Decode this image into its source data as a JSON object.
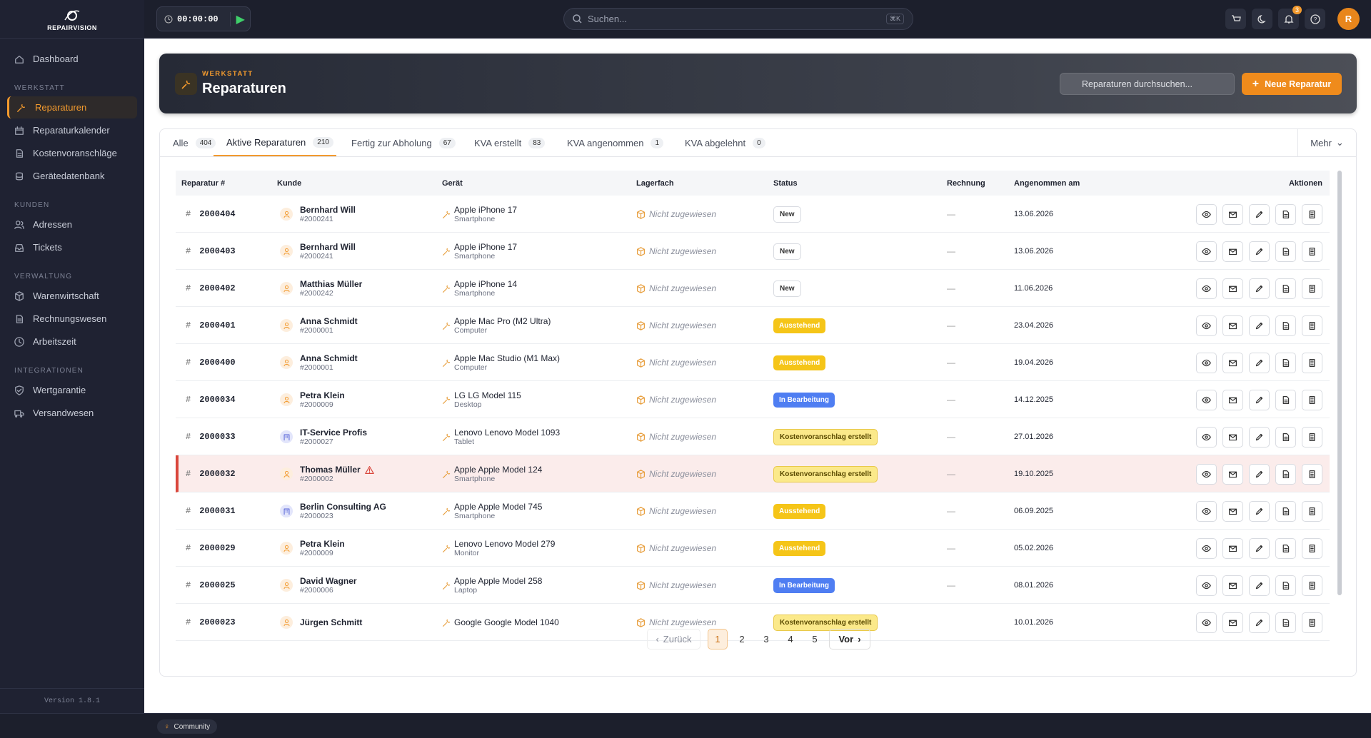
{
  "sidebar": {
    "brand": "REPAIRVISION",
    "top_items": [
      {
        "label": "Dashboard",
        "icon": "home"
      }
    ],
    "sections": [
      {
        "title": "WERKSTATT",
        "items": [
          {
            "label": "Reparaturen",
            "icon": "wrench",
            "active": true
          },
          {
            "label": "Reparaturkalender",
            "icon": "calendar"
          },
          {
            "label": "Kostenvoranschläge",
            "icon": "doc"
          },
          {
            "label": "Gerätedatenbank",
            "icon": "db"
          }
        ]
      },
      {
        "title": "KUNDEN",
        "items": [
          {
            "label": "Adressen",
            "icon": "users"
          },
          {
            "label": "Tickets",
            "icon": "inbox"
          }
        ]
      },
      {
        "title": "VERWALTUNG",
        "items": [
          {
            "label": "Warenwirtschaft",
            "icon": "box"
          },
          {
            "label": "Rechnungswesen",
            "icon": "doc"
          },
          {
            "label": "Arbeitszeit",
            "icon": "clock"
          }
        ]
      },
      {
        "title": "INTEGRATIONEN",
        "items": [
          {
            "label": "Wertgarantie",
            "icon": "shield"
          },
          {
            "label": "Versandwesen",
            "icon": "truck"
          }
        ]
      }
    ],
    "version": "Version 1.8.1"
  },
  "topbar": {
    "timer": "00:00:00",
    "search": "Suchen...",
    "shortcut": "⌘K",
    "notifications": 3,
    "avatar": "R"
  },
  "header": {
    "eyebrow": "WERKSTATT",
    "title": "Reparaturen",
    "search": "Reparaturen durchsuchen...",
    "button": "Neue Reparatur"
  },
  "tabs": {
    "items": [
      {
        "label": "Alle",
        "count": 404
      },
      {
        "label": "Aktive Reparaturen",
        "count": 210,
        "active": true
      },
      {
        "label": "Fertig zur Abholung",
        "count": 67
      },
      {
        "label": "KVA erstellt",
        "count": 83
      },
      {
        "label": "KVA angenommen",
        "count": 1
      },
      {
        "label": "KVA abgelehnt",
        "count": 0
      }
    ],
    "more": "Mehr"
  },
  "table": {
    "columns": [
      "Reparatur #",
      "Kunde",
      "Gerät",
      "Lagerfach",
      "Status",
      "Rechnung",
      "Angenommen am",
      "Aktionen"
    ],
    "rows": [
      {
        "id": "2000404",
        "customer": "Bernhard Will",
        "customer_no": "#2000241",
        "icon": "person",
        "device": "Apple iPhone 17",
        "device_type": "Smartphone",
        "storage": "Nicht zugewiesen",
        "status": "New",
        "invoice": "—",
        "date": "13.06.2026"
      },
      {
        "id": "2000403",
        "customer": "Bernhard Will",
        "customer_no": "#2000241",
        "icon": "person",
        "device": "Apple iPhone 17",
        "device_type": "Smartphone",
        "storage": "Nicht zugewiesen",
        "status": "New",
        "invoice": "—",
        "date": "13.06.2026"
      },
      {
        "id": "2000402",
        "customer": "Matthias Müller",
        "customer_no": "#2000242",
        "icon": "person",
        "device": "Apple iPhone 14",
        "device_type": "Smartphone",
        "storage": "Nicht zugewiesen",
        "status": "New",
        "invoice": "—",
        "date": "11.06.2026"
      },
      {
        "id": "2000401",
        "customer": "Anna Schmidt",
        "customer_no": "#2000001",
        "icon": "person",
        "device": "Apple Mac Pro (M2 Ultra)",
        "device_type": "Computer",
        "storage": "Nicht zugewiesen",
        "status": "Ausstehend",
        "invoice": "—",
        "date": "23.04.2026"
      },
      {
        "id": "2000400",
        "customer": "Anna Schmidt",
        "customer_no": "#2000001",
        "icon": "person",
        "device": "Apple Mac Studio (M1 Max)",
        "device_type": "Computer",
        "storage": "Nicht zugewiesen",
        "status": "Ausstehend",
        "invoice": "—",
        "date": "19.04.2026"
      },
      {
        "id": "2000034",
        "customer": "Petra Klein",
        "customer_no": "#2000009",
        "icon": "person",
        "device": "LG LG Model 115",
        "device_type": "Desktop",
        "storage": "Nicht zugewiesen",
        "status": "In Bearbeitung",
        "invoice": "—",
        "date": "14.12.2025"
      },
      {
        "id": "2000033",
        "customer": "IT-Service Profis",
        "customer_no": "#2000027",
        "icon": "company",
        "device": "Lenovo Lenovo Model 1093",
        "device_type": "Tablet",
        "storage": "Nicht zugewiesen",
        "status": "Kostenvoranschlag erstellt",
        "invoice": "—",
        "date": "27.01.2026"
      },
      {
        "id": "2000032",
        "customer": "Thomas Müller",
        "customer_no": "#2000002",
        "icon": "person",
        "warning": true,
        "device": "Apple Apple Model 124",
        "device_type": "Smartphone",
        "storage": "Nicht zugewiesen",
        "status": "Kostenvoranschlag erstellt",
        "invoice": "—",
        "date": "19.10.2025"
      },
      {
        "id": "2000031",
        "customer": "Berlin Consulting AG",
        "customer_no": "#2000023",
        "icon": "company",
        "device": "Apple Apple Model 745",
        "device_type": "Smartphone",
        "storage": "Nicht zugewiesen",
        "status": "Ausstehend",
        "invoice": "—",
        "date": "06.09.2025"
      },
      {
        "id": "2000029",
        "customer": "Petra Klein",
        "customer_no": "#2000009",
        "icon": "person",
        "device": "Lenovo Lenovo Model 279",
        "device_type": "Monitor",
        "storage": "Nicht zugewiesen",
        "status": "Ausstehend",
        "invoice": "—",
        "date": "05.02.2026"
      },
      {
        "id": "2000025",
        "customer": "David Wagner",
        "customer_no": "#2000006",
        "icon": "person",
        "device": "Apple Apple Model 258",
        "device_type": "Laptop",
        "storage": "Nicht zugewiesen",
        "status": "In Bearbeitung",
        "invoice": "—",
        "date": "08.01.2026"
      },
      {
        "id": "2000023",
        "customer": "Jürgen Schmitt",
        "icon": "person",
        "device": "Google Google Model 1040",
        "storage": "Nicht zugewiesen",
        "status": "Kostenvoranschlag erstellt",
        "date": "10.01.2026"
      }
    ]
  },
  "pagination": {
    "prev": "Zurück",
    "pages": [
      1,
      2,
      3,
      4,
      5
    ],
    "current": 1,
    "next": "Vor"
  },
  "footer": {
    "community": "Community"
  }
}
